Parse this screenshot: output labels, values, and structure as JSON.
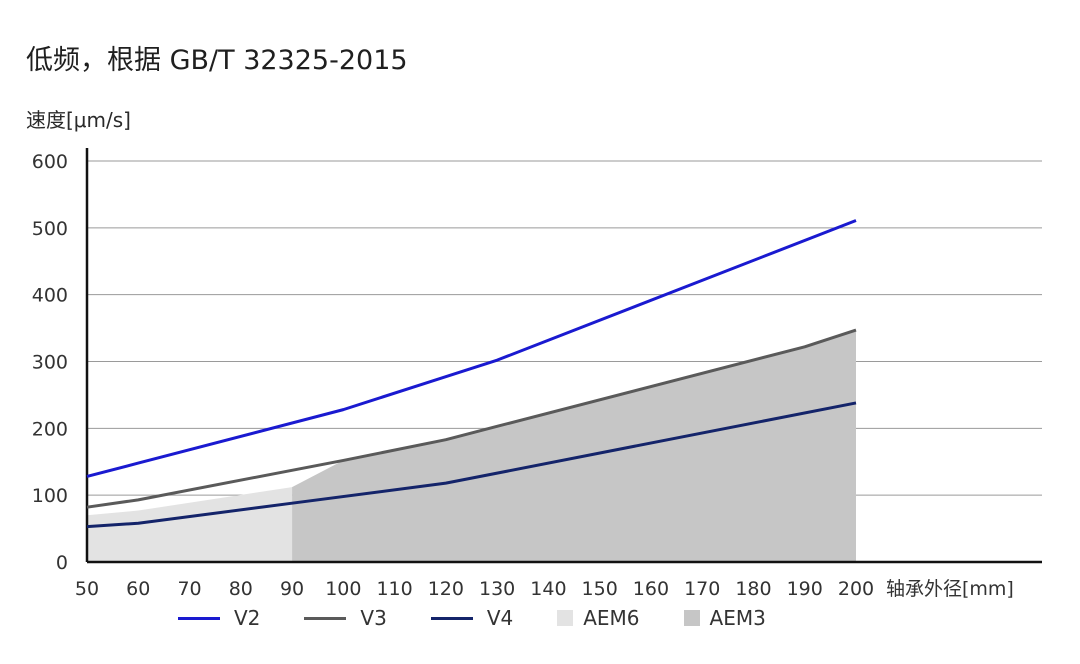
{
  "title": "低频，根据 GB/T 32325-2015",
  "chart_data": {
    "type": "line",
    "title": "低频，根据 GB/T 32325-2015",
    "ylabel": "速度[μm/s]",
    "xlabel": "轴承外径[mm]",
    "x": [
      50,
      60,
      70,
      80,
      90,
      100,
      110,
      120,
      130,
      140,
      150,
      160,
      170,
      180,
      190,
      200
    ],
    "x_ticks": [
      "50",
      "60",
      "70",
      "80",
      "90",
      "100",
      "110",
      "120",
      "130",
      "140",
      "150",
      "160",
      "170",
      "180",
      "190",
      "200"
    ],
    "y_ticks": [
      "0",
      "100",
      "200",
      "300",
      "400",
      "500",
      "600"
    ],
    "ylim": [
      0,
      600
    ],
    "grid": true,
    "legend_position": "bottom",
    "series": [
      {
        "name": "V2",
        "kind": "line",
        "color": "#1a1ad0",
        "x": [
          50,
          60,
          100,
          130,
          200
        ],
        "y": [
          128,
          148,
          228,
          302,
          511
        ]
      },
      {
        "name": "V3",
        "kind": "line",
        "color": "#5a5a5a",
        "x": [
          50,
          60,
          100,
          120,
          130,
          190,
          200
        ],
        "y": [
          82,
          93,
          152,
          183,
          203,
          322,
          347
        ]
      },
      {
        "name": "V4",
        "kind": "line",
        "color": "#14246a",
        "x": [
          50,
          60,
          90,
          120,
          200
        ],
        "y": [
          53,
          58,
          88,
          118,
          238
        ]
      },
      {
        "name": "AEM6",
        "kind": "area",
        "color": "#e3e3e3",
        "x": [
          50,
          60,
          90
        ],
        "y": [
          70,
          77,
          112
        ]
      },
      {
        "name": "AEM3",
        "kind": "area",
        "color": "#c6c6c6",
        "x": [
          90,
          100,
          120,
          130,
          190,
          200
        ],
        "y": [
          112,
          152,
          183,
          203,
          322,
          347
        ]
      }
    ]
  }
}
